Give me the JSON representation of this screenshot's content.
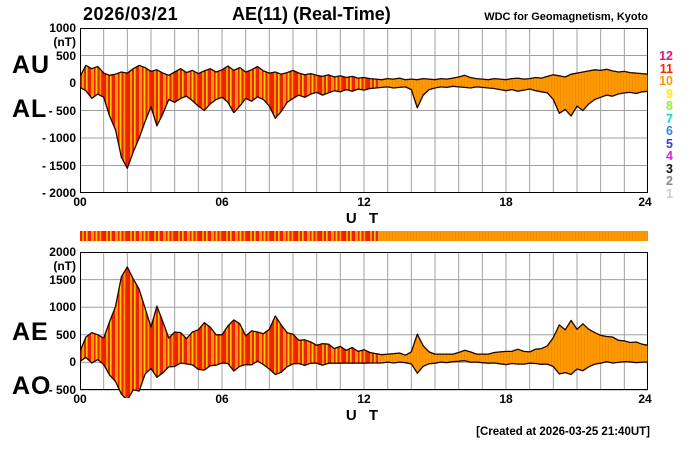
{
  "header": {
    "date": "2026/03/21",
    "title": "AE(11) (Real-Time)",
    "source": "WDC for Geomagnetism, Kyoto"
  },
  "footer": {
    "created": "[Created at 2026-03-25 21:40UT]"
  },
  "colors": {
    "fill_red": "#ee2200",
    "fill_orange": "#ff9900",
    "fill_orange_tex": "#f08c00",
    "stripe_yellow": "#ffcc00",
    "outline": "#1c0400",
    "grid": "#a0a0a0",
    "border": "#000000"
  },
  "station_scale": [
    {
      "label": "12",
      "color": "#ee1177"
    },
    {
      "label": "11",
      "color": "#ff2200"
    },
    {
      "label": "10",
      "color": "#ff9900"
    },
    {
      "label": "9",
      "color": "#ffee00"
    },
    {
      "label": "8",
      "color": "#99ee33"
    },
    {
      "label": "7",
      "color": "#11ddcc"
    },
    {
      "label": "6",
      "color": "#3388ee"
    },
    {
      "label": "5",
      "color": "#4433dd"
    },
    {
      "label": "4",
      "color": "#dd22dd"
    },
    {
      "label": "3",
      "color": "#111111"
    },
    {
      "label": "2",
      "color": "#888888"
    },
    {
      "label": "1",
      "color": "#cccccc"
    }
  ],
  "chart_data": [
    {
      "type": "area",
      "name": "AU-AL panel",
      "ylabel": "(nT)",
      "xlabel": "U T",
      "ylim": [
        -2000,
        1000
      ],
      "yticks": [
        1000,
        500,
        0,
        -500,
        -1000,
        -1500,
        -2000
      ],
      "ytick_labels": [
        "1000",
        "500",
        "0",
        "- 500",
        "- 1000",
        "- 1500",
        "- 2000"
      ],
      "xlim": [
        0,
        24
      ],
      "xtick_hours": [
        0,
        6,
        12,
        18,
        24
      ],
      "xticks": [
        "00",
        "06",
        "12",
        "18",
        "24"
      ],
      "hours_step": 0.25,
      "color_transition_hour": 12.6,
      "fill_styles": {
        "before": "red-striped",
        "after": "orange"
      },
      "series": [
        {
          "name": "AU",
          "values": [
            120,
            320,
            260,
            300,
            180,
            140,
            160,
            200,
            180,
            260,
            320,
            280,
            210,
            240,
            180,
            140,
            200,
            260,
            190,
            230,
            170,
            220,
            260,
            200,
            240,
            310,
            230,
            280,
            200,
            240,
            300,
            220,
            180,
            200,
            160,
            190,
            230,
            180,
            150,
            170,
            140,
            120,
            150,
            110,
            130,
            100,
            120,
            90,
            100,
            80,
            70,
            60,
            80,
            70,
            90,
            60,
            70,
            60,
            80,
            70,
            60,
            80,
            70,
            90,
            110,
            140,
            100,
            80,
            70,
            60,
            80,
            70,
            60,
            80,
            90,
            70,
            80,
            100,
            90,
            120,
            150,
            130,
            110,
            160,
            180,
            200,
            220,
            240,
            230,
            250,
            220,
            200,
            210,
            190,
            180,
            170,
            160
          ]
        },
        {
          "name": "AL",
          "values": [
            -80,
            -140,
            -280,
            -200,
            -260,
            -600,
            -850,
            -1350,
            -1550,
            -1250,
            -1000,
            -700,
            -430,
            -780,
            -560,
            -300,
            -350,
            -280,
            -240,
            -320,
            -420,
            -500,
            -380,
            -300,
            -260,
            -350,
            -540,
            -420,
            -280,
            -330,
            -250,
            -300,
            -420,
            -640,
            -520,
            -350,
            -280,
            -220,
            -260,
            -200,
            -170,
            -220,
            -180,
            -140,
            -160,
            -120,
            -150,
            -110,
            -130,
            -100,
            -90,
            -80,
            -70,
            -90,
            -80,
            -70,
            -120,
            -450,
            -220,
            -120,
            -90,
            -70,
            -80,
            -60,
            -70,
            -80,
            -90,
            -70,
            -80,
            -90,
            -100,
            -120,
            -140,
            -120,
            -150,
            -130,
            -110,
            -140,
            -160,
            -180,
            -300,
            -550,
            -480,
            -600,
            -420,
            -500,
            -380,
            -300,
            -260,
            -220,
            -240,
            -200,
            -180,
            -170,
            -190,
            -160,
            -150
          ]
        }
      ]
    },
    {
      "type": "area",
      "name": "AE-AO panel",
      "ylabel": "(nT)",
      "xlabel": "U T",
      "ylim": [
        -500,
        2000
      ],
      "yticks": [
        2000,
        1500,
        1000,
        500,
        0,
        -500
      ],
      "ytick_labels": [
        "2000",
        "1500",
        "1000",
        "500",
        "0",
        "- 500"
      ],
      "xlim": [
        0,
        24
      ],
      "xtick_hours": [
        0,
        6,
        12,
        18,
        24
      ],
      "xticks": [
        "00",
        "06",
        "12",
        "18",
        "24"
      ],
      "hours_step": 0.25,
      "color_transition_hour": 12.6,
      "fill_styles": {
        "before": "red-striped",
        "after": "orange"
      },
      "series": [
        {
          "name": "AE",
          "values": [
            200,
            460,
            540,
            500,
            440,
            740,
            1010,
            1550,
            1730,
            1510,
            1320,
            980,
            640,
            1020,
            740,
            440,
            550,
            540,
            430,
            550,
            590,
            720,
            640,
            500,
            500,
            660,
            770,
            700,
            480,
            570,
            550,
            520,
            600,
            840,
            680,
            540,
            510,
            400,
            410,
            370,
            310,
            340,
            330,
            250,
            290,
            220,
            270,
            200,
            230,
            180,
            160,
            140,
            150,
            160,
            170,
            130,
            190,
            510,
            300,
            190,
            150,
            150,
            150,
            150,
            180,
            220,
            190,
            150,
            150,
            150,
            180,
            190,
            200,
            200,
            240,
            200,
            190,
            240,
            250,
            300,
            450,
            680,
            590,
            760,
            600,
            700,
            600,
            540,
            490,
            470,
            460,
            400,
            390,
            360,
            370,
            330,
            310
          ]
        },
        {
          "name": "AO",
          "values": [
            20,
            90,
            -10,
            50,
            -40,
            -230,
            -345,
            -575,
            -685,
            -495,
            -520,
            -210,
            -110,
            -270,
            -190,
            -80,
            -75,
            -10,
            -25,
            -45,
            -125,
            -140,
            -60,
            -50,
            -10,
            -20,
            -155,
            -70,
            -40,
            -45,
            25,
            -40,
            -120,
            -220,
            -180,
            -80,
            -25,
            -20,
            -55,
            -15,
            -15,
            -50,
            -15,
            -15,
            -15,
            -10,
            -15,
            -10,
            -15,
            -10,
            -10,
            -10,
            5,
            -10,
            5,
            -5,
            -25,
            -195,
            -70,
            -25,
            -15,
            5,
            -5,
            15,
            20,
            30,
            5,
            5,
            -5,
            -15,
            -10,
            -25,
            -40,
            -20,
            -30,
            -30,
            -15,
            -20,
            -35,
            -30,
            -75,
            -210,
            -185,
            -220,
            -120,
            -150,
            -80,
            -30,
            -15,
            15,
            -10,
            0,
            15,
            10,
            -5,
            5,
            5
          ]
        }
      ]
    },
    {
      "type": "heatmap",
      "name": "station-count-bar",
      "segments": [
        {
          "from_hour": 0,
          "to_hour": 12.6,
          "style": "red-striped"
        },
        {
          "from_hour": 12.6,
          "to_hour": 24,
          "style": "orange"
        }
      ]
    }
  ]
}
